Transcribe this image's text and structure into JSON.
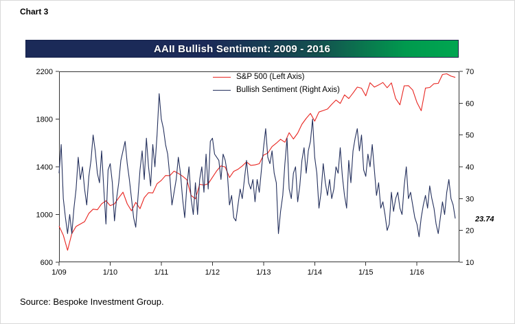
{
  "page": {
    "chart_label": "Chart 3",
    "source": "Source: Bespoke Investment Group."
  },
  "chart_data": {
    "type": "line",
    "title": "AAII Bullish Sentiment: 2009 - 2016",
    "x_domain": [
      2009.0,
      2016.83
    ],
    "x_tick_values": [
      2009,
      2010,
      2011,
      2012,
      2013,
      2014,
      2015,
      2016
    ],
    "x_ticks": [
      "1/09",
      "1/10",
      "1/11",
      "1/12",
      "1/13",
      "1/14",
      "1/15",
      "1/16"
    ],
    "left_axis": {
      "range": [
        600,
        2200
      ],
      "ticks": [
        600,
        1000,
        1400,
        1800,
        2200
      ]
    },
    "right_axis": {
      "range": [
        10,
        70
      ],
      "ticks": [
        10,
        20,
        30,
        40,
        50,
        60,
        70
      ]
    },
    "grid": false,
    "legend_position": "top-center-inside",
    "series": [
      {
        "name": "S&P 500 (Left Axis)",
        "axis": "left",
        "color": "#e8241f",
        "x_start": 2009.0,
        "x_step": 0.0833333,
        "values": [
          903,
          826,
          700,
          840,
          900,
          920,
          940,
          1010,
          1045,
          1040,
          1090,
          1115,
          1074,
          1089,
          1140,
          1187,
          1089,
          1031,
          1102,
          1049,
          1141,
          1183,
          1181,
          1258,
          1286,
          1327,
          1326,
          1364,
          1345,
          1321,
          1292,
          1160,
          1131,
          1253,
          1247,
          1258,
          1312,
          1366,
          1408,
          1398,
          1310,
          1362,
          1379,
          1407,
          1441,
          1412,
          1416,
          1426,
          1498,
          1515,
          1569,
          1598,
          1631,
          1606,
          1686,
          1633,
          1682,
          1757,
          1806,
          1848,
          1783,
          1859,
          1872,
          1884,
          1924,
          1960,
          1931,
          2003,
          1972,
          2018,
          2068,
          2059,
          1995,
          2105,
          2068,
          2086,
          2107,
          2063,
          2104,
          1972,
          1920,
          2079,
          2080,
          2044,
          1940,
          1870,
          2060,
          2065,
          2097,
          2099,
          2174,
          2180,
          2160,
          2150
        ]
      },
      {
        "name": "Bullish Sentiment (Right Axis)",
        "axis": "right",
        "color": "#232f5c",
        "x_start": 2009.0,
        "x_step": 0.0416667,
        "values": [
          38,
          47,
          30,
          24,
          19,
          25,
          19,
          27,
          33,
          43,
          36,
          40,
          33,
          28,
          37,
          42,
          50,
          45,
          38,
          35,
          45,
          33,
          22,
          39,
          41,
          35,
          23,
          30,
          35,
          42,
          45,
          48,
          41,
          36,
          30,
          24,
          21,
          30,
          39,
          45,
          36,
          49,
          40,
          34,
          47,
          40,
          50,
          63,
          55,
          52,
          47,
          44,
          37,
          28,
          32,
          36,
          43,
          38,
          30,
          24,
          34,
          40,
          30,
          25,
          35,
          25,
          36,
          40,
          32,
          44,
          33,
          48,
          49,
          44,
          43,
          42,
          36,
          44,
          42,
          38,
          28,
          31,
          24,
          23,
          28,
          33,
          30,
          36,
          42,
          35,
          33,
          36,
          29,
          36,
          32,
          39,
          46,
          52,
          43,
          41,
          45,
          38,
          35,
          19,
          26,
          31,
          41,
          49,
          33,
          30,
          38,
          40,
          29,
          34,
          42,
          46,
          38,
          45,
          48,
          55,
          43,
          38,
          27,
          32,
          41,
          35,
          31,
          36,
          30,
          33,
          40,
          38,
          46,
          37,
          31,
          27,
          42,
          35,
          45,
          49,
          52,
          45,
          50,
          39,
          37,
          44,
          40,
          47,
          39,
          31,
          35,
          27,
          29,
          25,
          20,
          22,
          32,
          26,
          30,
          32,
          27,
          25,
          34,
          40,
          30,
          32,
          28,
          24,
          22,
          18,
          24,
          28,
          31,
          27,
          34,
          30,
          27,
          22,
          19,
          24,
          29,
          25,
          32,
          36,
          30,
          28,
          23.74
        ]
      }
    ],
    "annotation": {
      "text": "23.74",
      "value": 23.74,
      "axis": "right",
      "color": "#e8241f"
    }
  }
}
